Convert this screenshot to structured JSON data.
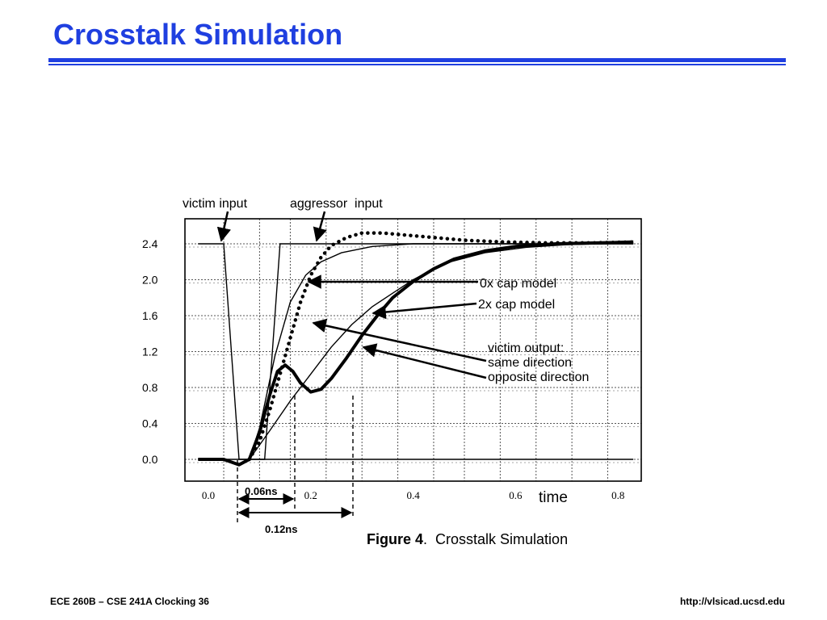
{
  "slide": {
    "title": "Crosstalk Simulation",
    "title_color": "#1f3fe0"
  },
  "footer": {
    "left": "ECE 260B – CSE 241A Clocking 36",
    "right": "http://vlsicad.ucsd.edu"
  },
  "chart_data": {
    "type": "line",
    "title": "",
    "caption_bold": "Figure 4",
    "caption_rest": ".  Crosstalk Simulation",
    "xlabel": "time",
    "ylabel": "",
    "xlim": [
      -0.02,
      0.83
    ],
    "ylim": [
      -0.2,
      2.6
    ],
    "x_ticks": [
      {
        "value": 0.0,
        "label": "0.0"
      },
      {
        "value": 0.2,
        "label": "0.2"
      },
      {
        "value": 0.4,
        "label": "0.4"
      },
      {
        "value": 0.6,
        "label": "0.6"
      },
      {
        "value": 0.8,
        "label": "0.8"
      }
    ],
    "y_ticks": [
      {
        "value": 0.0,
        "label": "0.0"
      },
      {
        "value": 0.4,
        "label": "0.4"
      },
      {
        "value": 0.8,
        "label": "0.8"
      },
      {
        "value": 1.2,
        "label": "1.2"
      },
      {
        "value": 1.6,
        "label": "1.6"
      },
      {
        "value": 2.0,
        "label": "2.0"
      },
      {
        "value": 2.4,
        "label": "2.4"
      }
    ],
    "grid_x": [
      0.03,
      0.1,
      0.16,
      0.23,
      0.3,
      0.37,
      0.44,
      0.5,
      0.57,
      0.64,
      0.71,
      0.78
    ],
    "grid": true,
    "series": [
      {
        "style": "thin",
        "points": [
          [
            -0.02,
            2.4
          ],
          [
            0.03,
            2.4
          ],
          [
            0.06,
            0.0
          ],
          [
            0.83,
            0.0
          ]
        ]
      },
      {
        "style": "thin",
        "points": [
          [
            -0.02,
            0.0
          ],
          [
            0.11,
            0.0
          ],
          [
            0.14,
            2.4
          ],
          [
            0.83,
            2.4
          ]
        ]
      },
      {
        "style": "thin",
        "points": [
          [
            0.08,
            0.0
          ],
          [
            0.1,
            0.35
          ],
          [
            0.13,
            1.15
          ],
          [
            0.16,
            1.75
          ],
          [
            0.19,
            2.05
          ],
          [
            0.22,
            2.2
          ],
          [
            0.26,
            2.3
          ],
          [
            0.32,
            2.37
          ],
          [
            0.4,
            2.4
          ],
          [
            0.83,
            2.4
          ]
        ]
      },
      {
        "style": "thin",
        "points": [
          [
            0.08,
            0.0
          ],
          [
            0.12,
            0.32
          ],
          [
            0.16,
            0.65
          ],
          [
            0.2,
            0.95
          ],
          [
            0.24,
            1.25
          ],
          [
            0.28,
            1.5
          ],
          [
            0.32,
            1.7
          ],
          [
            0.36,
            1.85
          ],
          [
            0.4,
            2.0
          ],
          [
            0.46,
            2.18
          ],
          [
            0.54,
            2.3
          ],
          [
            0.62,
            2.36
          ],
          [
            0.7,
            2.39
          ],
          [
            0.83,
            2.41
          ]
        ]
      },
      {
        "style": "dotted",
        "points": [
          [
            0.08,
            0.0
          ],
          [
            0.1,
            0.2
          ],
          [
            0.12,
            0.55
          ],
          [
            0.14,
            0.95
          ],
          [
            0.16,
            1.35
          ],
          [
            0.18,
            1.75
          ],
          [
            0.2,
            2.05
          ],
          [
            0.22,
            2.25
          ],
          [
            0.24,
            2.38
          ],
          [
            0.27,
            2.47
          ],
          [
            0.3,
            2.52
          ],
          [
            0.34,
            2.52
          ],
          [
            0.38,
            2.5
          ],
          [
            0.44,
            2.47
          ],
          [
            0.5,
            2.44
          ],
          [
            0.58,
            2.42
          ],
          [
            0.66,
            2.41
          ],
          [
            0.75,
            2.41
          ],
          [
            0.83,
            2.42
          ]
        ]
      },
      {
        "style": "bold",
        "points": [
          [
            -0.02,
            0.0
          ],
          [
            0.03,
            0.0
          ],
          [
            0.06,
            -0.06
          ],
          [
            0.08,
            0.0
          ],
          [
            0.1,
            0.3
          ],
          [
            0.12,
            0.72
          ],
          [
            0.135,
            0.98
          ],
          [
            0.15,
            1.05
          ],
          [
            0.165,
            0.98
          ],
          [
            0.18,
            0.85
          ],
          [
            0.2,
            0.75
          ],
          [
            0.22,
            0.78
          ],
          [
            0.24,
            0.9
          ],
          [
            0.27,
            1.13
          ],
          [
            0.3,
            1.38
          ],
          [
            0.33,
            1.6
          ],
          [
            0.36,
            1.8
          ],
          [
            0.4,
            1.98
          ],
          [
            0.44,
            2.12
          ],
          [
            0.48,
            2.23
          ],
          [
            0.54,
            2.32
          ],
          [
            0.6,
            2.37
          ],
          [
            0.68,
            2.4
          ],
          [
            0.76,
            2.41
          ],
          [
            0.83,
            2.42
          ]
        ]
      }
    ],
    "annotations": [
      {
        "text": "victim input"
      },
      {
        "text": "aggressor  input"
      },
      {
        "text": "0x cap model"
      },
      {
        "text": "2x cap model"
      },
      {
        "text": "victim output:"
      },
      {
        "text": "same direction"
      },
      {
        "text": "opposite direction"
      },
      {
        "text": "0.06ns"
      },
      {
        "text": "0.12ns"
      }
    ]
  }
}
